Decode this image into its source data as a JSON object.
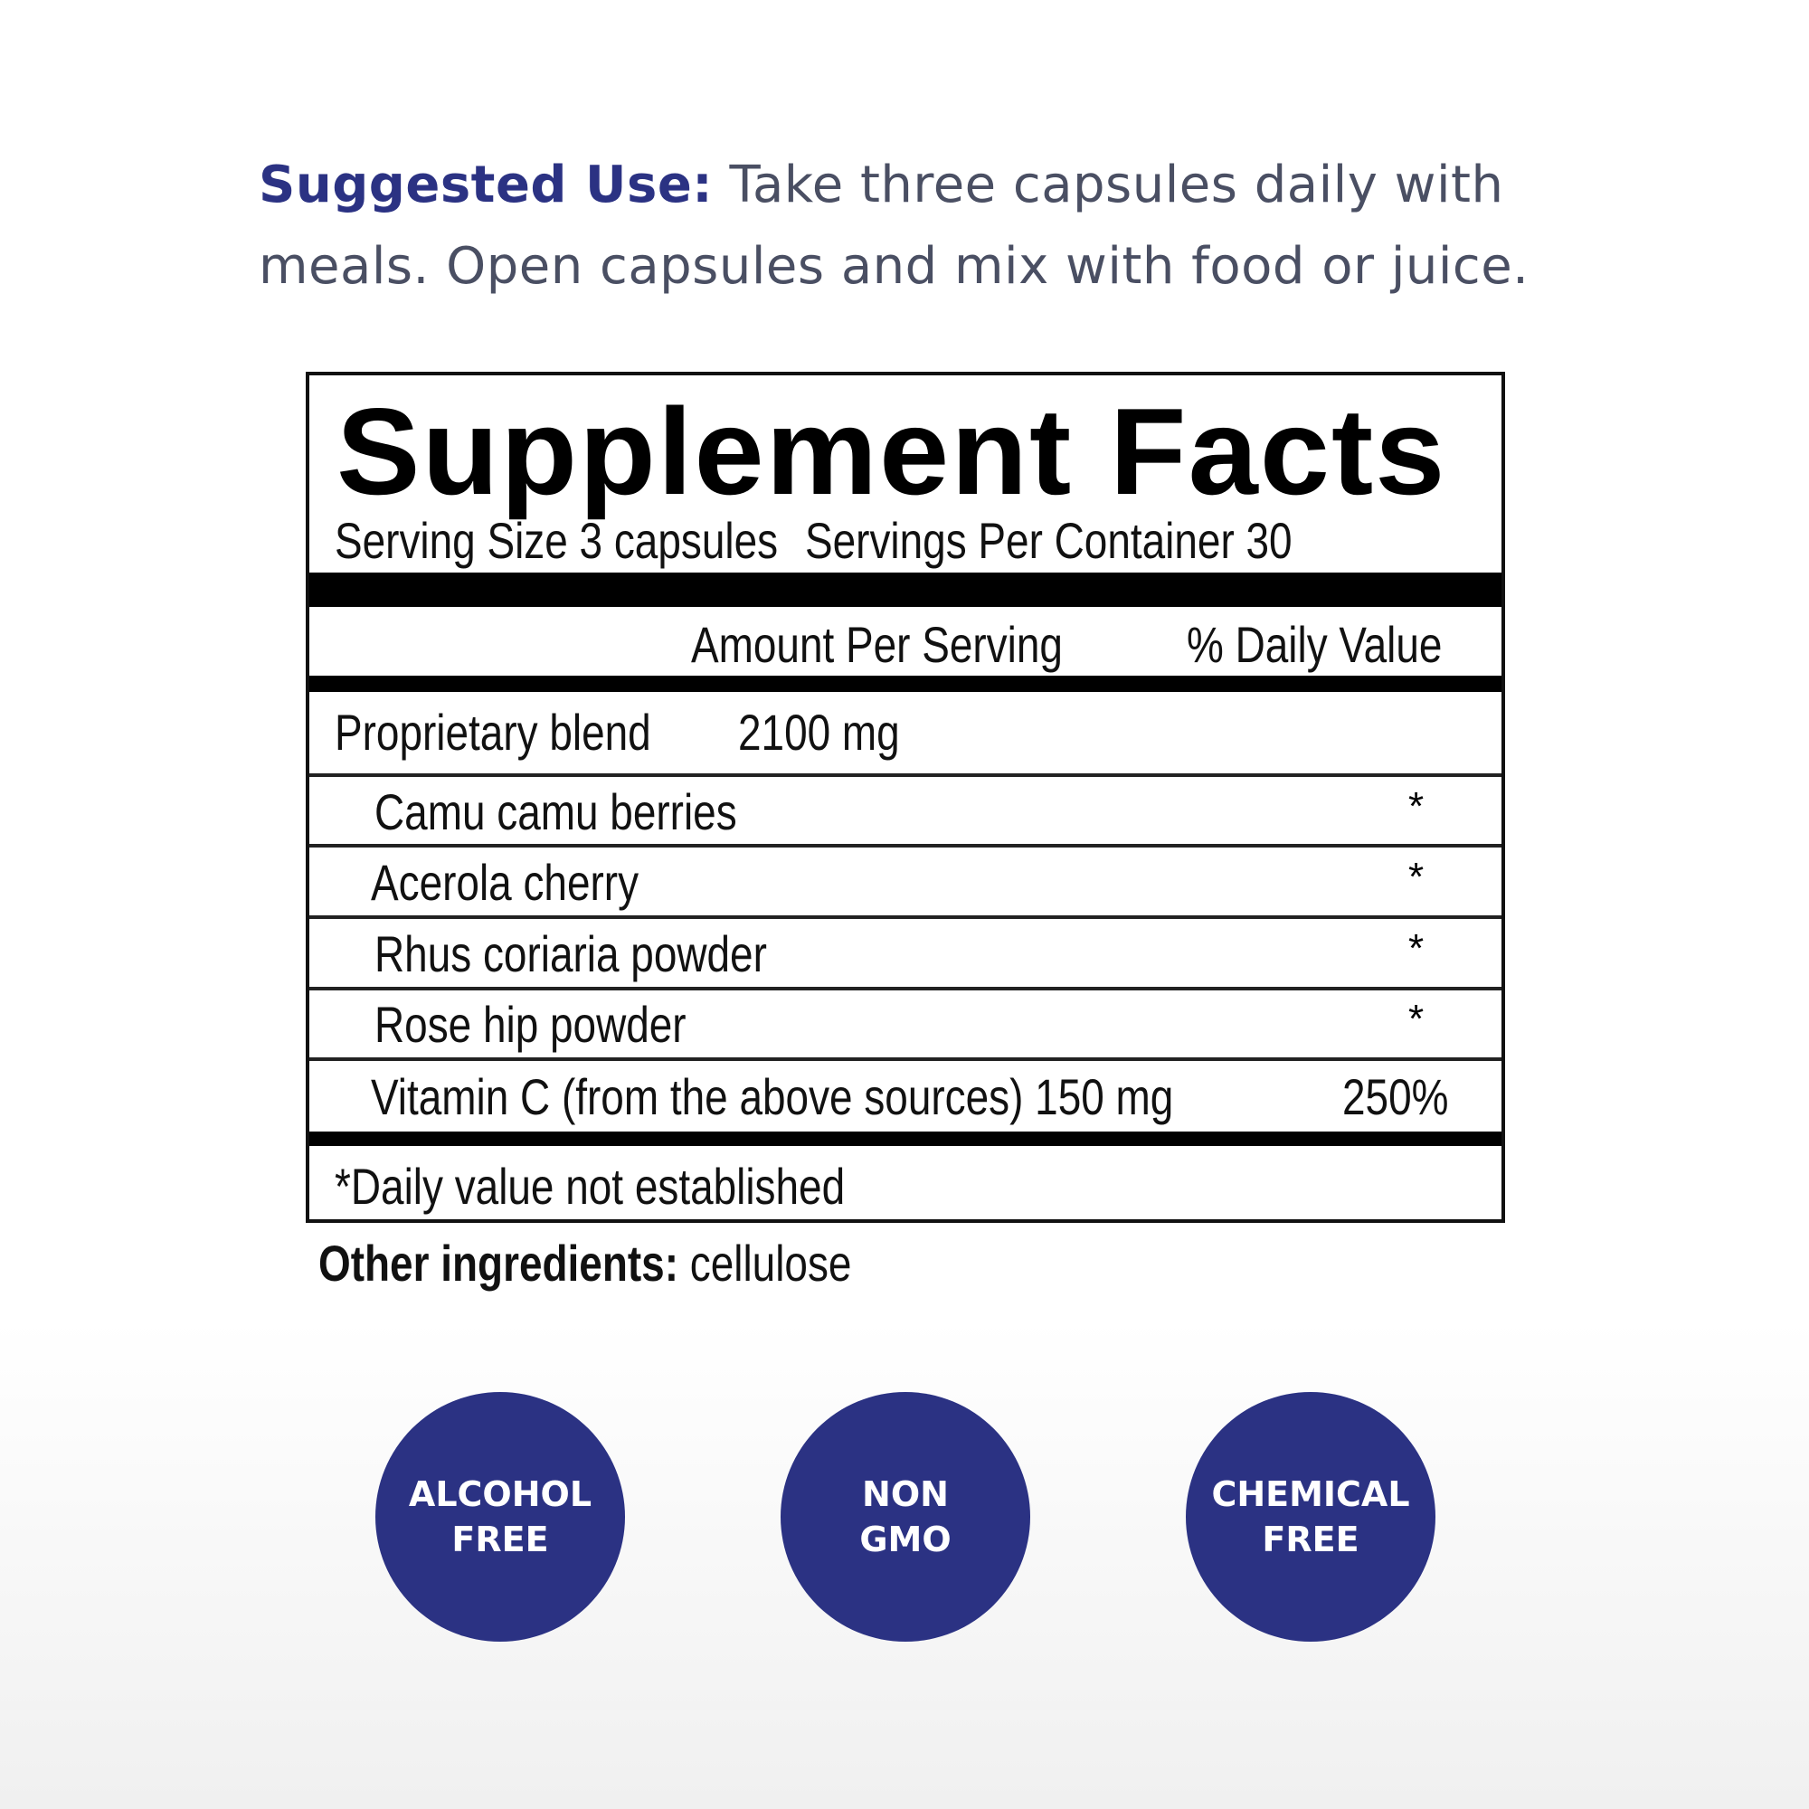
{
  "suggested_use": {
    "label": "Suggested Use:",
    "text": "Take three capsules daily with meals. Open capsules and mix with food or juice."
  },
  "facts": {
    "title": "Supplement Facts",
    "serving_size": "Serving Size 3 capsules",
    "servings_per_container": "Servings Per Container 30",
    "header_amount": "Amount Per Serving",
    "header_dv": "% Daily Value",
    "blend": {
      "name": "Proprietary blend",
      "amount": "2100 mg"
    },
    "ingredients": [
      {
        "name": "Camu camu berries",
        "dv": "*"
      },
      {
        "name": "Acerola cherry",
        "dv": "*"
      },
      {
        "name": "Rhus coriaria powder",
        "dv": "*"
      },
      {
        "name": "Rose hip powder",
        "dv": "*"
      }
    ],
    "vitamin": {
      "name": "Vitamin C (from the above sources) 150 mg",
      "dv": "250%"
    },
    "footnote": "*Daily value not established"
  },
  "other_ingredients": {
    "label": "Other ingredients:",
    "value": "cellulose"
  },
  "badges": [
    {
      "line1": "ALCOHOL",
      "line2": "FREE"
    },
    {
      "line1": "NON",
      "line2": "GMO"
    },
    {
      "line1": "CHEMICAL",
      "line2": "FREE"
    }
  ],
  "colors": {
    "brand": "#2b3283",
    "text": "#4a4f63"
  }
}
